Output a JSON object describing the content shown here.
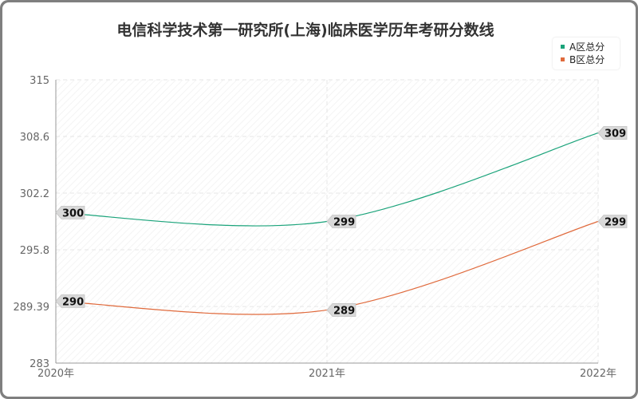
{
  "title": "电信科学技术第一研究所(上海)临床医学历年考研分数线",
  "colors": {
    "series_a": "#1aa37a",
    "series_b": "#e06a3c",
    "grid": "#e6e6e6",
    "axis": "#999999",
    "label_bg": "#d9d9d9"
  },
  "chart_data": {
    "type": "line",
    "title": "电信科学技术第一研究所(上海)临床医学历年考研分数线",
    "x": [
      "2020年",
      "2021年",
      "2022年"
    ],
    "y_ticks": [
      "283",
      "289.39",
      "295.8",
      "302.2",
      "308.6",
      "315"
    ],
    "ylim": [
      283,
      315
    ],
    "grid": true,
    "legend_position": "top-right",
    "series": [
      {
        "name": "A区总分",
        "values": [
          300,
          299,
          309
        ],
        "labels": [
          "300",
          "299",
          "309"
        ]
      },
      {
        "name": "B区总分",
        "values": [
          290,
          289,
          299
        ],
        "labels": [
          "290",
          "289",
          "299"
        ]
      }
    ]
  }
}
